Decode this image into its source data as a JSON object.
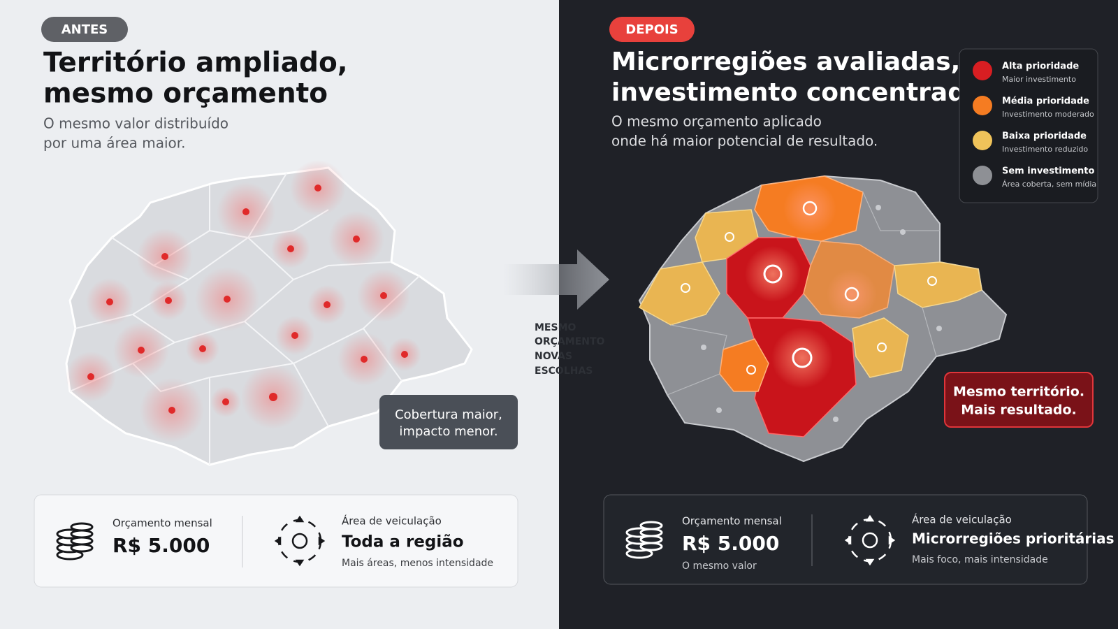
{
  "before": {
    "badge": "ANTES",
    "title_lines": [
      "Território ampliado,",
      "mesmo orçamento"
    ],
    "subtitle_lines": [
      "O mesmo valor distribuído",
      "por uma área maior."
    ],
    "callout_lines": [
      "Cobertura maior,",
      "impacto menor."
    ],
    "budget": {
      "label": "Orçamento mensal",
      "value": "R$ 5.000"
    },
    "area": {
      "label": "Área de veiculação",
      "value": "Toda a região",
      "note": "Mais áreas, menos intensidade"
    }
  },
  "transition": {
    "lines": [
      "MESMO",
      "ORÇAMENTO",
      "NOVAS",
      "ESCOLHAS"
    ]
  },
  "after": {
    "badge": "DEPOIS",
    "title_lines": [
      "Microrregiões avaliadas,",
      "investimento concentrado"
    ],
    "subtitle_lines": [
      "O mesmo orçamento aplicado",
      "onde há maior potencial de resultado."
    ],
    "legend": [
      {
        "label": "Alta prioridade",
        "note": "Maior investimento",
        "color": "#d81e22"
      },
      {
        "label": "Média prioridade",
        "note": "Investimento moderado",
        "color": "#f57c22"
      },
      {
        "label": "Baixa prioridade",
        "note": "Investimento reduzido",
        "color": "#f0c35a"
      },
      {
        "label": "Sem investimento",
        "note": "Área coberta, sem mídia",
        "color": "#8e9095"
      }
    ],
    "callout_lines": [
      "Mesmo território.",
      "Mais resultado."
    ],
    "budget": {
      "label": "Orçamento mensal",
      "value": "R$ 5.000",
      "note": "O mesmo valor"
    },
    "area": {
      "label": "Área de veiculação",
      "value": "Microrregiões prioritárias",
      "note": "Mais foco, mais intensidade"
    }
  }
}
